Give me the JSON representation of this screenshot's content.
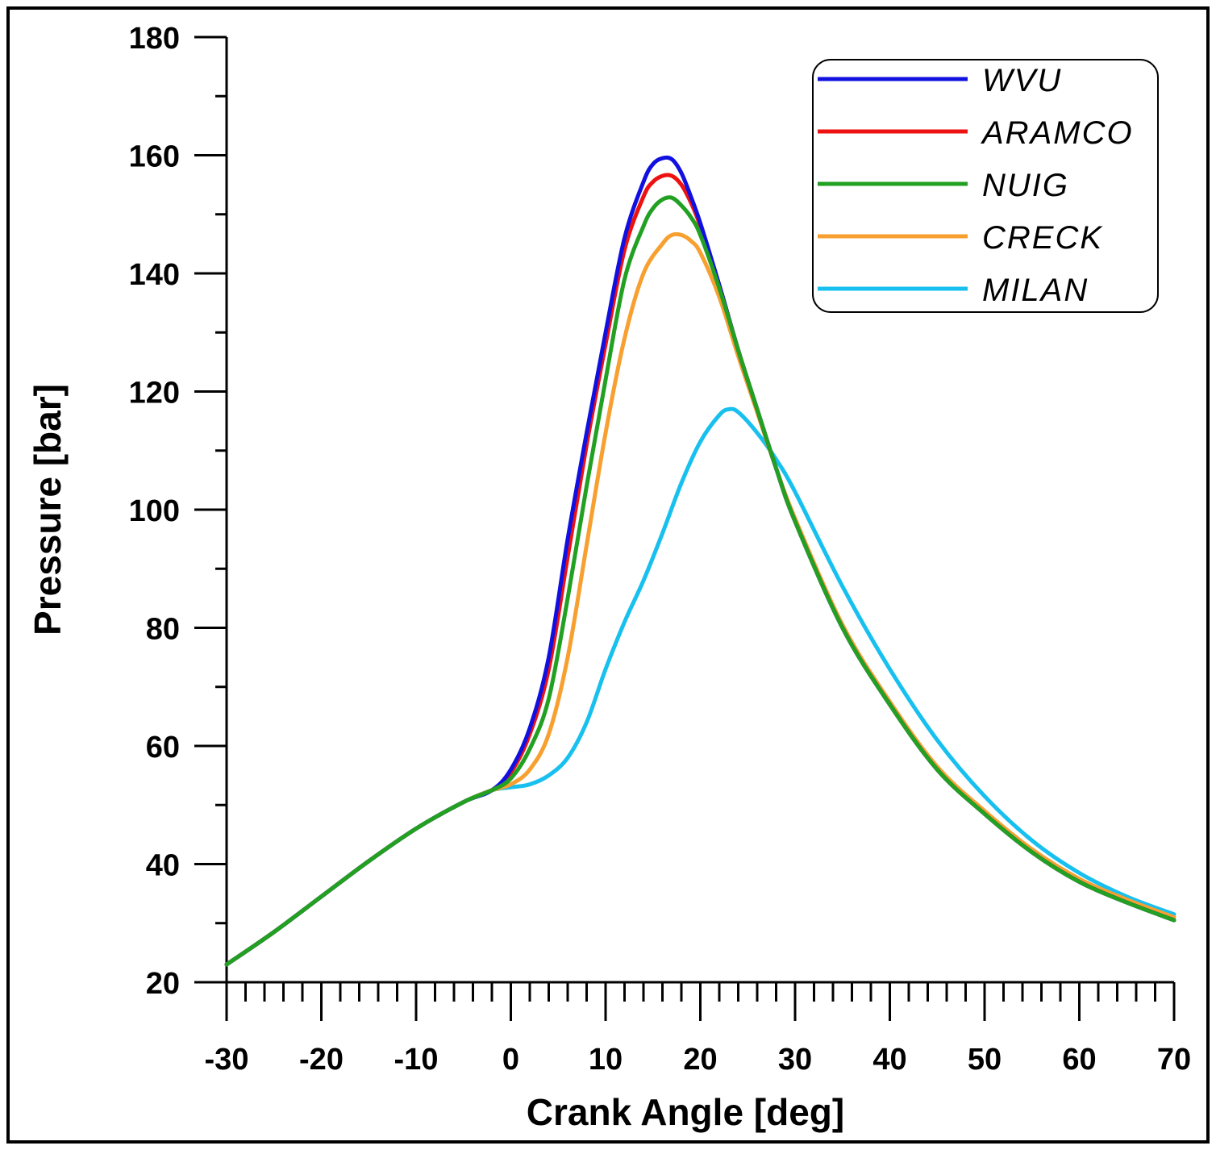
{
  "chart_data": {
    "type": "line",
    "title": "",
    "xlabel": "Crank Angle [deg]",
    "ylabel": "Pressure [bar]",
    "xlim": [
      -30,
      70
    ],
    "ylim": [
      20,
      180
    ],
    "xticks": [
      -30,
      -20,
      -10,
      0,
      10,
      20,
      30,
      40,
      50,
      60,
      70
    ],
    "yticks": [
      20,
      40,
      60,
      80,
      100,
      120,
      140,
      160,
      180
    ],
    "xtick_labels": [
      "-30",
      "-20",
      "-10",
      "0",
      "10",
      "20",
      "30",
      "40",
      "50",
      "60",
      "70"
    ],
    "ytick_labels": [
      "20",
      "40",
      "60",
      "80",
      "100",
      "120",
      "140",
      "160",
      "180"
    ],
    "legend_position": "top-right",
    "grid": false,
    "series": [
      {
        "name": "WVU",
        "color": "#1010e0",
        "x": [
          -30,
          -25,
          -20,
          -15,
          -10,
          -5,
          -2,
          0,
          2,
          4,
          6,
          8,
          10,
          12,
          14,
          15,
          16,
          17,
          18,
          19,
          20,
          22,
          24,
          26,
          28,
          30,
          35,
          40,
          45,
          50,
          55,
          60,
          65,
          70
        ],
        "y": [
          23,
          28.5,
          34.5,
          40.5,
          46,
          50.5,
          52.5,
          56,
          63,
          75,
          95,
          113,
          130,
          146,
          155.5,
          158.5,
          159.5,
          159.3,
          157,
          153,
          148.5,
          138,
          127,
          117,
          107,
          98,
          80,
          67,
          56,
          48.5,
          42,
          37,
          33.5,
          30.5
        ]
      },
      {
        "name": "ARAMCO",
        "color": "#ee1111",
        "x": [
          -30,
          -25,
          -20,
          -15,
          -10,
          -5,
          -2,
          0,
          2,
          4,
          6,
          8,
          10,
          12,
          14,
          15,
          16,
          17,
          18,
          19,
          20,
          22,
          24,
          26,
          28,
          30,
          35,
          40,
          45,
          50,
          55,
          60,
          65,
          70
        ],
        "y": [
          23,
          28.5,
          34.5,
          40.5,
          46,
          50.5,
          52.5,
          55.5,
          62,
          73,
          92,
          111,
          128,
          144,
          153,
          155.5,
          156.5,
          156.5,
          155,
          152,
          148,
          138,
          127,
          117,
          107,
          98,
          80,
          67,
          56,
          48.5,
          42,
          37,
          33.5,
          30.5
        ]
      },
      {
        "name": "NUIG",
        "color": "#22a022",
        "x": [
          -30,
          -25,
          -20,
          -15,
          -10,
          -5,
          -2,
          0,
          2,
          4,
          6,
          8,
          10,
          12,
          14,
          15,
          16,
          17,
          18,
          19,
          20,
          22,
          24,
          26,
          28,
          30,
          35,
          40,
          45,
          50,
          55,
          60,
          65,
          70
        ],
        "y": [
          23,
          28.5,
          34.5,
          40.5,
          46,
          50.5,
          52.5,
          54.5,
          59.5,
          68,
          85,
          104,
          122,
          139,
          148,
          151,
          152.5,
          152.8,
          151.5,
          149.5,
          146.5,
          137.5,
          127,
          117,
          107,
          98,
          80,
          67,
          56,
          48.5,
          42,
          37,
          33.5,
          30.5
        ]
      },
      {
        "name": "CRECK",
        "color": "#f7a030",
        "x": [
          -30,
          -25,
          -20,
          -15,
          -10,
          -5,
          -2,
          0,
          2,
          4,
          6,
          8,
          10,
          12,
          14,
          16,
          17,
          18,
          19,
          20,
          22,
          24,
          26,
          28,
          30,
          35,
          40,
          45,
          50,
          55,
          60,
          65,
          70
        ],
        "y": [
          23,
          28.5,
          34.5,
          40.5,
          46,
          50.5,
          52.5,
          53.5,
          56,
          62,
          75,
          94,
          113,
          129,
          140,
          145,
          146.5,
          146.5,
          145.5,
          143.5,
          136,
          126,
          116.5,
          107,
          98.5,
          80.5,
          67.5,
          56.5,
          49,
          42.5,
          37.5,
          34,
          31
        ]
      },
      {
        "name": "MILAN",
        "color": "#17c0ee",
        "x": [
          -30,
          -25,
          -20,
          -15,
          -10,
          -5,
          -2,
          0,
          2,
          4,
          6,
          8,
          10,
          12,
          14,
          16,
          18,
          20,
          22,
          23,
          24,
          26,
          28,
          30,
          35,
          40,
          45,
          50,
          55,
          60,
          65,
          70
        ],
        "y": [
          23,
          28.5,
          34.5,
          40.5,
          46,
          50.5,
          52.5,
          53,
          53.5,
          55,
          58,
          64,
          73,
          81,
          88,
          96,
          104.5,
          111.5,
          116,
          117,
          116.5,
          113,
          108.5,
          103,
          87,
          73,
          61,
          51.5,
          44,
          38.5,
          34.5,
          31.5
        ]
      }
    ]
  }
}
